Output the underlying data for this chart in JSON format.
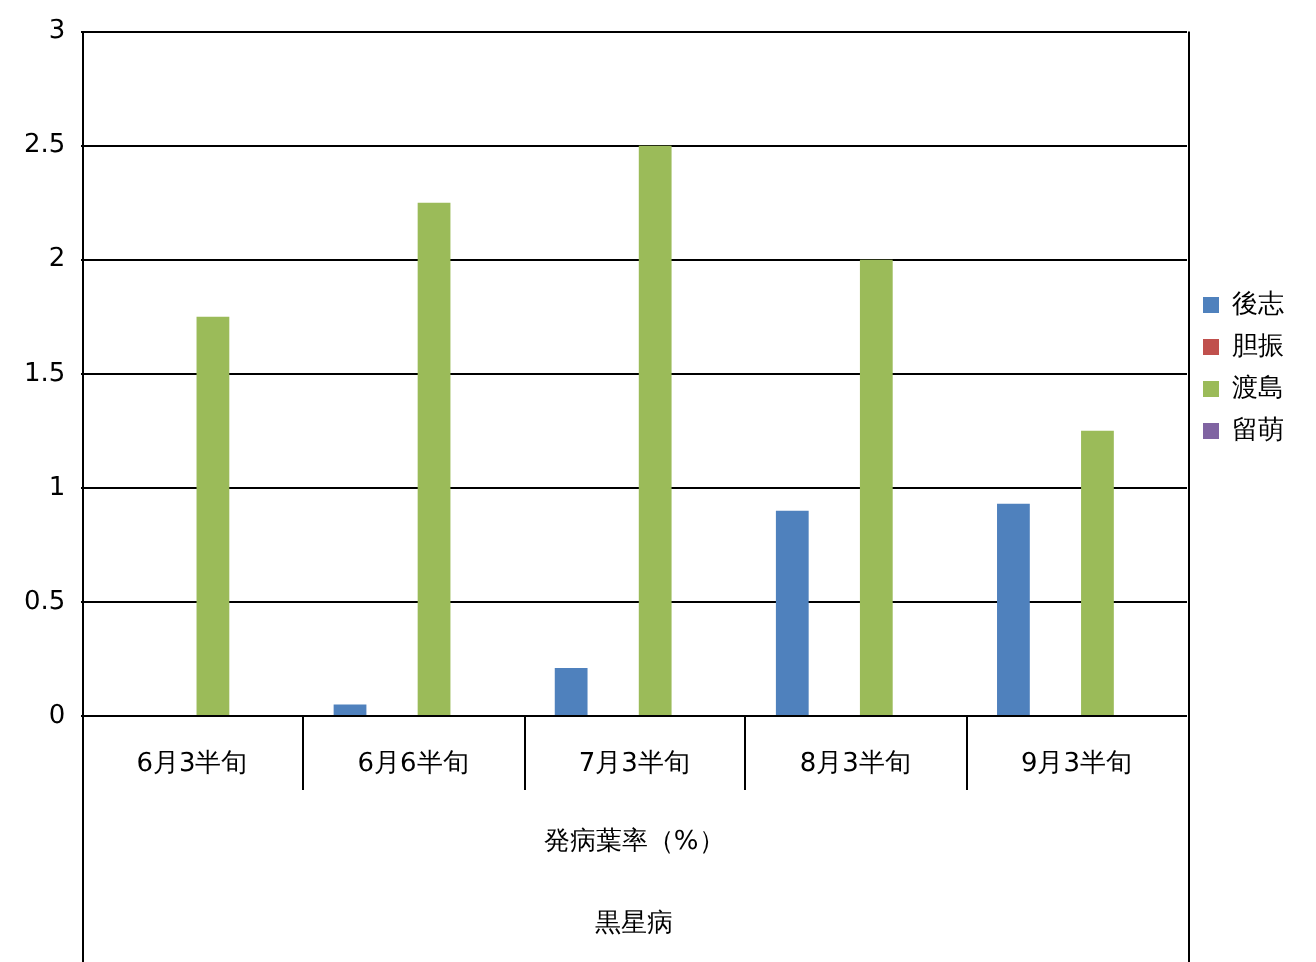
{
  "chart_data": {
    "type": "bar",
    "xlabel": "発病葉率（%）",
    "annotations": [
      "黒星病"
    ],
    "categories": [
      "6月3半旬",
      "6月6半旬",
      "7月3半旬",
      "8月3半旬",
      "9月3半旬"
    ],
    "series": [
      {
        "name": "後志",
        "color": "#4f81bd",
        "values": [
          null,
          0.05,
          0.21,
          0.9,
          0.93
        ]
      },
      {
        "name": "胆振",
        "color": "#c0504d",
        "values": [
          null,
          null,
          null,
          null,
          null
        ]
      },
      {
        "name": "渡島",
        "color": "#9bbb59",
        "values": [
          1.75,
          2.25,
          2.5,
          2.0,
          1.25
        ]
      },
      {
        "name": "留萌",
        "color": "#8064a2",
        "values": [
          null,
          null,
          null,
          null,
          null
        ]
      }
    ],
    "ylim": [
      0,
      3
    ],
    "yticks": [
      0,
      0.5,
      1,
      1.5,
      2,
      2.5,
      3
    ],
    "grid": "y",
    "legend": "right"
  }
}
